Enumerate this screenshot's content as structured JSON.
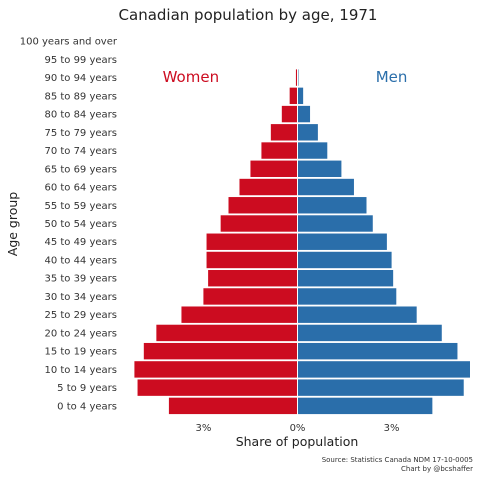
{
  "chart_data": {
    "type": "bar",
    "title": "Canadian population by age, 1971",
    "xlabel": "Share of population",
    "ylabel": "Age group",
    "categories": [
      "0 to 4 years",
      "5 to 9 years",
      "10 to 14 years",
      "15 to 19 years",
      "20 to 24 years",
      "25 to 29 years",
      "30 to 34 years",
      "35 to 39 years",
      "40 to 44 years",
      "45 to 49 years",
      "50 to 54 years",
      "55 to 59 years",
      "60 to 64 years",
      "65 to 69 years",
      "70 to 74 years",
      "75 to 79 years",
      "80 to 84 years",
      "85 to 89 years",
      "90 to 94 years",
      "95 to 99 years",
      "100 years and over"
    ],
    "series": [
      {
        "name": "Women",
        "color": "#cc0c20",
        "values": [
          4.1,
          5.1,
          5.2,
          4.9,
          4.5,
          3.7,
          3.0,
          2.85,
          2.9,
          2.9,
          2.45,
          2.2,
          1.85,
          1.5,
          1.15,
          0.85,
          0.5,
          0.25,
          0.05,
          0.01,
          0.0
        ]
      },
      {
        "name": "Men",
        "color": "#2a6eaa",
        "values": [
          4.3,
          5.3,
          5.5,
          5.1,
          4.6,
          3.8,
          3.15,
          3.05,
          3.0,
          2.85,
          2.4,
          2.2,
          1.8,
          1.4,
          0.95,
          0.65,
          0.4,
          0.18,
          0.03,
          0.0,
          0.0
        ]
      }
    ],
    "xlim": [
      -5.5,
      5.5
    ],
    "xticks": [
      {
        "value": -3,
        "label": "3%"
      },
      {
        "value": 0,
        "label": "0%"
      },
      {
        "value": 3,
        "label": "3%"
      }
    ],
    "grid": false,
    "legend": "direct labels at top of each side",
    "source": [
      "Source: Statistics Canada NDM 17-10-0005",
      "Chart by @bcshaffer"
    ]
  }
}
